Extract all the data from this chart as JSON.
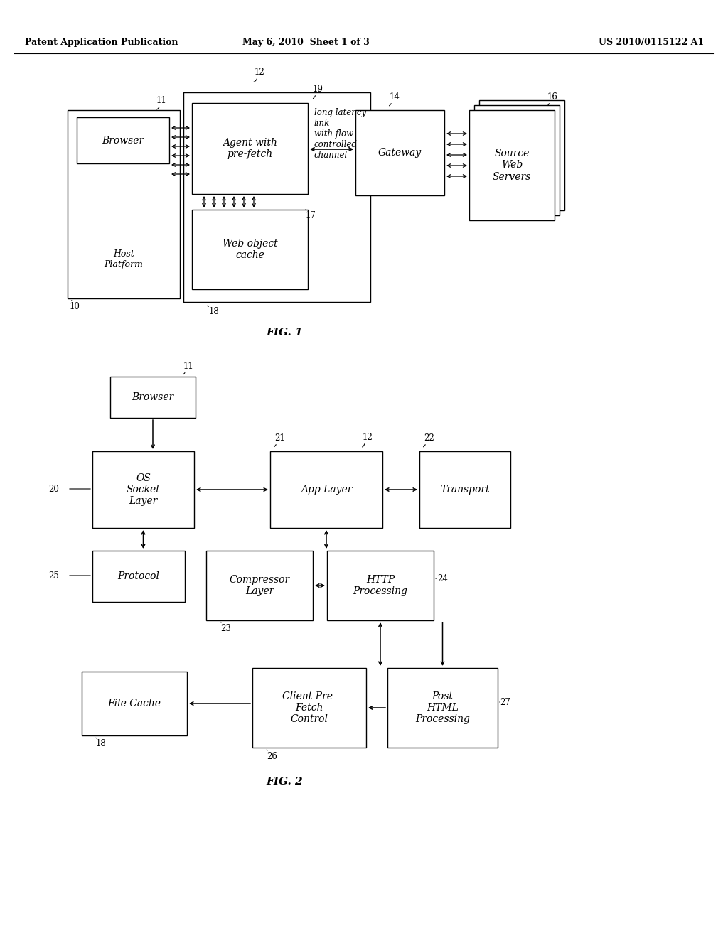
{
  "bg_color": "#ffffff",
  "header_left": "Patent Application Publication",
  "header_mid": "May 6, 2010  Sheet 1 of 3",
  "header_right": "US 2010/0115122 A1",
  "fig1_caption": "FIG. 1",
  "fig2_caption": "FIG. 2"
}
